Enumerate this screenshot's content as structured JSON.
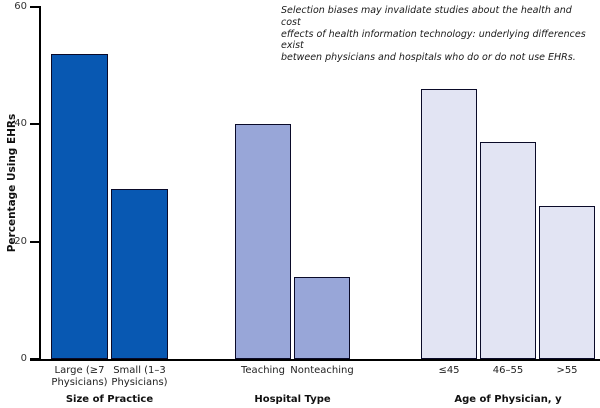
{
  "annotation": "Selection biases may invalidate studies about the health and cost\neffects of health information technology: underlying differences exist\nbetween physicians and hospitals who do or do not use EHRs.",
  "chart_data": {
    "type": "bar",
    "title": "",
    "xlabel": "",
    "ylabel": "Percentage Using EHRs",
    "ylim": [
      0,
      60
    ],
    "yticks": [
      0,
      20,
      40,
      60
    ],
    "grid": false,
    "legend": "none",
    "bar_border_color": "#0a0a28",
    "axis_color": "#000000",
    "groups": [
      {
        "label": "Size of Practice",
        "color": "#0858b2",
        "categories": [
          "Large (≥7\nPhysicians)",
          "Small (1–3\nPhysicians)"
        ],
        "values": [
          52,
          29
        ]
      },
      {
        "label": "Hospital Type",
        "color": "#98a6d8",
        "categories": [
          "Teaching",
          "Nonteaching"
        ],
        "values": [
          40,
          14
        ]
      },
      {
        "label": "Age of Physician, y",
        "color": "#e2e4f3",
        "categories": [
          "≤45",
          "46–55",
          ">55"
        ],
        "values": [
          46,
          37,
          26
        ]
      }
    ]
  }
}
